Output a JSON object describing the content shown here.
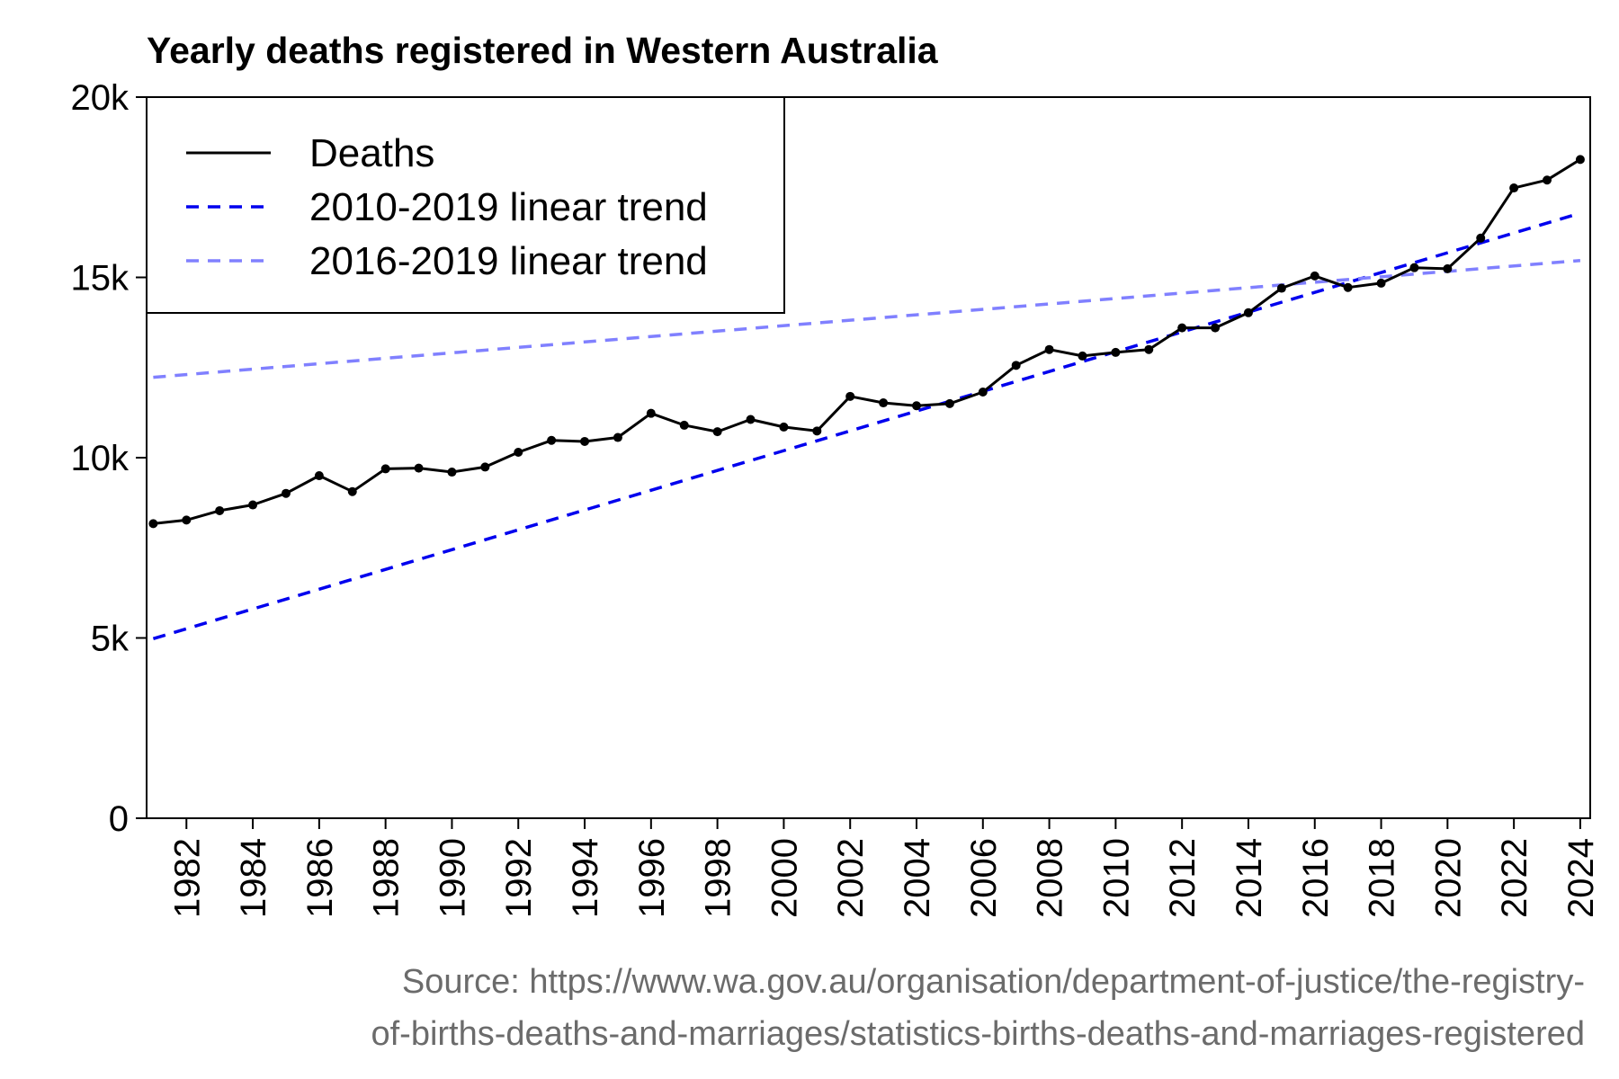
{
  "chart_data": {
    "type": "line",
    "title": "Yearly deaths registered in Western Australia",
    "xlabel": "",
    "ylabel": "",
    "xlim": [
      1980.8,
      2024.3
    ],
    "ylim": [
      0,
      20000
    ],
    "y_ticks": [
      {
        "value": 0,
        "label": "0"
      },
      {
        "value": 5000,
        "label": "5k"
      },
      {
        "value": 10000,
        "label": "10k"
      },
      {
        "value": 15000,
        "label": "15k"
      },
      {
        "value": 20000,
        "label": "20k"
      }
    ],
    "x_ticks": [
      1982,
      1984,
      1986,
      1988,
      1990,
      1992,
      1994,
      1996,
      1998,
      2000,
      2002,
      2004,
      2006,
      2008,
      2010,
      2012,
      2014,
      2016,
      2018,
      2020,
      2022,
      2024
    ],
    "legend_position": "top-left",
    "series": [
      {
        "name": "Deaths",
        "color": "#000000",
        "style": "solid-with-markers",
        "x": [
          1981,
          1982,
          1983,
          1984,
          1985,
          1986,
          1987,
          1988,
          1989,
          1990,
          1991,
          1992,
          1993,
          1994,
          1995,
          1996,
          1997,
          1998,
          1999,
          2000,
          2001,
          2002,
          2003,
          2004,
          2005,
          2006,
          2007,
          2008,
          2009,
          2010,
          2011,
          2012,
          2013,
          2014,
          2015,
          2016,
          2017,
          2018,
          2019,
          2020,
          2021,
          2022,
          2023,
          2024
        ],
        "values": [
          8170,
          8270,
          8530,
          8690,
          9010,
          9500,
          9060,
          9690,
          9710,
          9600,
          9740,
          10150,
          10480,
          10450,
          10560,
          11230,
          10900,
          10720,
          11060,
          10850,
          10740,
          11700,
          11520,
          11440,
          11500,
          11820,
          12560,
          13000,
          12820,
          12920,
          13000,
          13600,
          13600,
          14020,
          14700,
          15040,
          14720,
          14840,
          15270,
          15240,
          16090,
          17480,
          17700,
          18270
        ]
      },
      {
        "name": "2010-2019 linear trend",
        "color": "#0000ee",
        "style": "dashed",
        "x": [
          1981,
          2024
        ],
        "values": [
          4980,
          16780
        ]
      },
      {
        "name": "2016-2019 linear trend",
        "color": "#8080ff",
        "style": "dashed",
        "x": [
          1981,
          2024
        ],
        "values": [
          12230,
          15470
        ]
      }
    ],
    "source": "Source: https://www.wa.gov.au/organisation/department-of-justice/the-registry-of-births-deaths-and-marriages/statistics-births-deaths-and-marriages-registered",
    "source_lines": [
      "Source: https://www.wa.gov.au/organisation/department-of-justice/the-registry-",
      "of-births-deaths-and-marriages/statistics-births-deaths-and-marriages-registered"
    ]
  }
}
